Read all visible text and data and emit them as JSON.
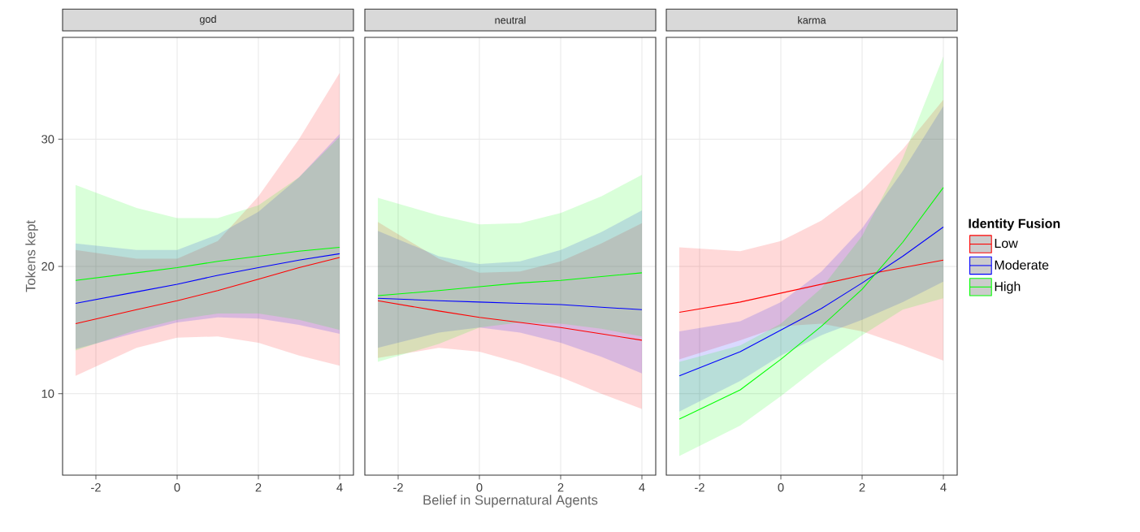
{
  "chart_data": [
    {
      "type": "line",
      "title": "god",
      "ylabel": "Tokens kept",
      "xlim": [
        -2.82,
        4.34
      ],
      "ylim": [
        3.6,
        38.0
      ],
      "xticks": [
        -2,
        0,
        2,
        4
      ],
      "yticks": [
        10,
        20,
        30
      ],
      "grid": true,
      "series": [
        {
          "color": "#ff0000",
          "x": [
            -2.5,
            -1,
            0,
            1,
            2,
            3,
            4
          ],
          "values": [
            15.5,
            16.6,
            17.3,
            18.1,
            19.0,
            19.9,
            20.7
          ],
          "lower": [
            11.4,
            13.6,
            14.4,
            14.5,
            14.0,
            13.0,
            12.2
          ],
          "upper": [
            21.3,
            20.6,
            20.6,
            22.0,
            25.5,
            30.0,
            35.2
          ]
        },
        {
          "color": "#0000ff",
          "x": [
            -2.5,
            -1,
            0,
            1,
            2,
            3,
            4
          ],
          "values": [
            17.1,
            18.0,
            18.6,
            19.3,
            19.9,
            20.5,
            21.0
          ],
          "lower": [
            13.5,
            14.8,
            15.6,
            16.0,
            15.9,
            15.4,
            14.7
          ],
          "upper": [
            21.8,
            21.3,
            21.3,
            22.5,
            24.3,
            27.0,
            30.4
          ]
        },
        {
          "color": "#00ff00",
          "x": [
            -2.5,
            -1,
            0,
            1,
            2,
            3,
            4
          ],
          "values": [
            18.9,
            19.5,
            19.9,
            20.4,
            20.8,
            21.2,
            21.5
          ],
          "lower": [
            13.4,
            15.0,
            15.8,
            16.3,
            16.3,
            15.8,
            15.0
          ],
          "upper": [
            26.4,
            24.6,
            23.8,
            23.8,
            24.8,
            27.0,
            30.2
          ]
        }
      ]
    },
    {
      "type": "line",
      "title": "neutral",
      "xlabel": "Belief in Supernatural Agents",
      "xlim": [
        -2.82,
        4.34
      ],
      "ylim": [
        3.6,
        38.0
      ],
      "xticks": [
        -2,
        0,
        2,
        4
      ],
      "yticks": [
        10,
        20,
        30
      ],
      "grid": true,
      "tick_labels": "x",
      "series": [
        {
          "color": "#ff0000",
          "x": [
            -2.5,
            -1,
            0,
            1,
            2,
            3,
            4
          ],
          "values": [
            17.3,
            16.5,
            16.0,
            15.6,
            15.2,
            14.7,
            14.2
          ],
          "lower": [
            12.8,
            13.6,
            13.3,
            12.4,
            11.3,
            10.0,
            8.8
          ],
          "upper": [
            23.5,
            20.6,
            19.5,
            19.6,
            20.4,
            21.8,
            23.4
          ]
        },
        {
          "color": "#0000ff",
          "x": [
            -2.5,
            -1,
            0,
            1,
            2,
            3,
            4
          ],
          "values": [
            17.5,
            17.3,
            17.2,
            17.1,
            17.0,
            16.8,
            16.6
          ],
          "lower": [
            13.6,
            14.8,
            15.2,
            14.8,
            14.0,
            12.9,
            11.6
          ],
          "upper": [
            22.8,
            20.8,
            20.2,
            20.4,
            21.3,
            22.7,
            24.4
          ]
        },
        {
          "color": "#00ff00",
          "x": [
            -2.5,
            -1,
            0,
            1,
            2,
            3,
            4
          ],
          "values": [
            17.7,
            18.1,
            18.4,
            18.7,
            18.9,
            19.2,
            19.5
          ],
          "lower": [
            12.5,
            13.9,
            15.2,
            15.6,
            15.5,
            15.1,
            14.5
          ],
          "upper": [
            25.4,
            24.0,
            23.3,
            23.4,
            24.2,
            25.5,
            27.2
          ]
        }
      ]
    },
    {
      "type": "line",
      "title": "karma",
      "xlim": [
        -2.82,
        4.34
      ],
      "ylim": [
        3.6,
        38.0
      ],
      "xticks": [
        -2,
        0,
        2,
        4
      ],
      "yticks": [
        10,
        20,
        30
      ],
      "grid": true,
      "tick_labels": "x",
      "legend": "right",
      "legend_title": "Identity Fusion",
      "series": [
        {
          "name": "Low",
          "color": "#ff0000",
          "x": [
            -2.5,
            -1,
            0,
            1,
            2,
            3,
            4
          ],
          "values": [
            16.4,
            17.2,
            17.9,
            18.6,
            19.3,
            19.9,
            20.5
          ],
          "lower": [
            12.7,
            14.2,
            15.3,
            15.5,
            14.9,
            13.8,
            12.6
          ],
          "upper": [
            21.5,
            21.2,
            22.0,
            23.6,
            26.0,
            29.2,
            33.1
          ]
        },
        {
          "name": "Moderate",
          "color": "#0000ff",
          "x": [
            -2.5,
            -1,
            0,
            1,
            2,
            3,
            4
          ],
          "values": [
            11.4,
            13.3,
            15.0,
            16.7,
            18.7,
            20.8,
            23.1
          ],
          "lower": [
            8.6,
            11.0,
            13.0,
            14.6,
            15.8,
            17.2,
            18.8
          ],
          "upper": [
            14.9,
            15.7,
            17.2,
            19.6,
            23.0,
            27.5,
            32.6
          ]
        },
        {
          "name": "High",
          "color": "#00ff00",
          "x": [
            -2.5,
            -1,
            0,
            1,
            2,
            3,
            4
          ],
          "values": [
            8.0,
            10.3,
            12.7,
            15.3,
            18.2,
            21.9,
            26.2
          ],
          "lower": [
            5.1,
            7.5,
            9.8,
            12.3,
            14.6,
            16.6,
            17.5
          ],
          "upper": [
            12.5,
            13.8,
            15.5,
            18.3,
            22.4,
            28.5,
            36.5
          ]
        }
      ]
    }
  ]
}
